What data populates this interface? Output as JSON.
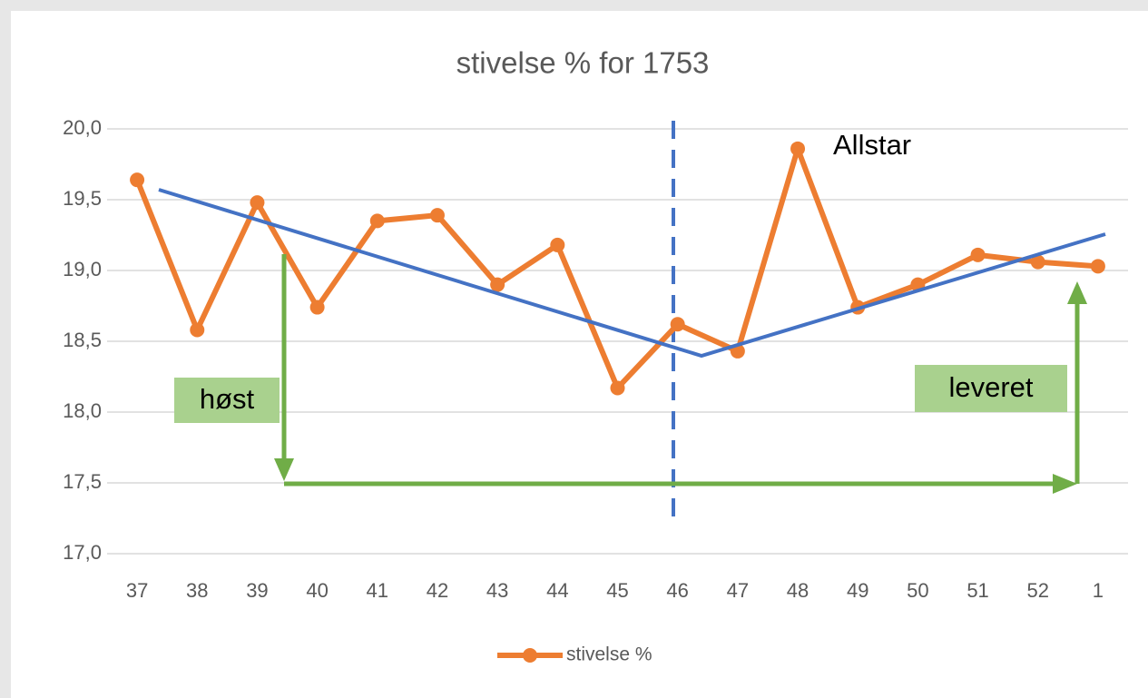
{
  "chart_data": {
    "type": "line",
    "title": "stivelse % for 1753",
    "categories": [
      "37",
      "38",
      "39",
      "40",
      "41",
      "42",
      "43",
      "44",
      "45",
      "46",
      "47",
      "48",
      "49",
      "50",
      "51",
      "52",
      "1"
    ],
    "series": [
      {
        "name": "stivelse %",
        "color": "#ed7d31",
        "values": [
          19.64,
          18.58,
          19.48,
          18.74,
          19.35,
          19.39,
          18.9,
          19.18,
          18.17,
          18.62,
          18.43,
          19.86,
          18.74,
          18.9,
          19.11,
          19.06,
          19.03
        ]
      }
    ],
    "ylim": [
      17.0,
      20.0
    ],
    "yticks": [
      {
        "value": 17.0,
        "label": "17,0"
      },
      {
        "value": 17.5,
        "label": "17,5"
      },
      {
        "value": 18.0,
        "label": "18,0"
      },
      {
        "value": 18.5,
        "label": "18,5"
      },
      {
        "value": 19.0,
        "label": "19,0"
      },
      {
        "value": 19.5,
        "label": "19,5"
      },
      {
        "value": 20.0,
        "label": "20,0"
      }
    ],
    "grid": true,
    "legend": "bottom",
    "annotations": [
      "Allstar",
      "høst",
      "leveret"
    ]
  }
}
